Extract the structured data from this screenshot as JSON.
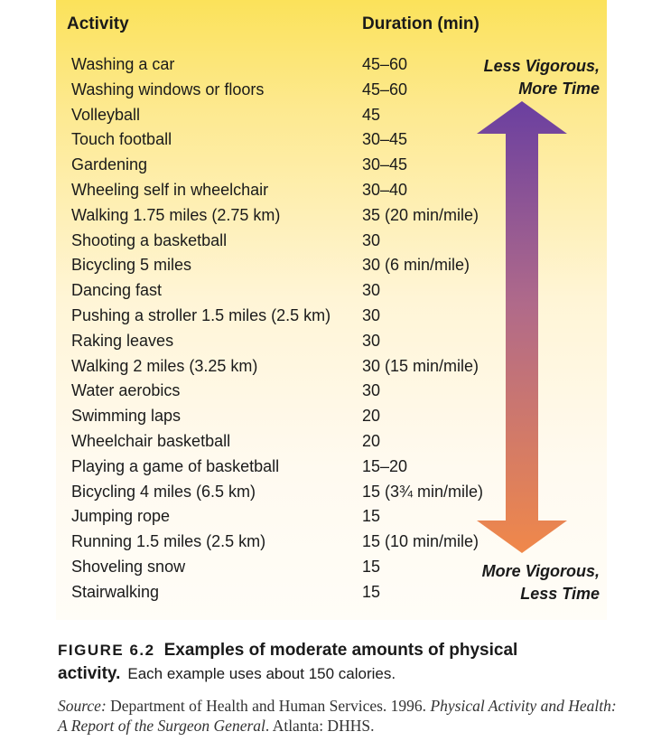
{
  "table": {
    "header_activity": "Activity",
    "header_duration": "Duration (min)",
    "rows": [
      {
        "activity": "Washing a car",
        "duration": "45–60"
      },
      {
        "activity": "Washing windows or floors",
        "duration": "45–60"
      },
      {
        "activity": "Volleyball",
        "duration": "45"
      },
      {
        "activity": "Touch football",
        "duration": "30–45"
      },
      {
        "activity": "Gardening",
        "duration": "30–45"
      },
      {
        "activity": "Wheeling self in wheelchair",
        "duration": "30–40"
      },
      {
        "activity": "Walking 1.75 miles (2.75 km)",
        "duration": "35 (20 min/mile)"
      },
      {
        "activity": "Shooting a basketball",
        "duration": "30"
      },
      {
        "activity": "Bicycling 5 miles",
        "duration": "30 (6 min/mile)"
      },
      {
        "activity": "Dancing fast",
        "duration": "30"
      },
      {
        "activity": "Pushing a stroller 1.5 miles (2.5 km)",
        "duration": "30"
      },
      {
        "activity": "Raking leaves",
        "duration": "30"
      },
      {
        "activity": "Walking 2 miles (3.25 km)",
        "duration": "30 (15 min/mile)"
      },
      {
        "activity": "Water aerobics",
        "duration": "30"
      },
      {
        "activity": "Swimming laps",
        "duration": "20"
      },
      {
        "activity": "Wheelchair basketball",
        "duration": "20"
      },
      {
        "activity": "Playing a game of basketball",
        "duration": "15–20"
      },
      {
        "activity": "Bicycling 4 miles (6.5 km)",
        "duration": "15 (3¾ min/mile)"
      },
      {
        "activity": "Jumping rope",
        "duration": "15"
      },
      {
        "activity": "Running 1.5 miles (2.5 km)",
        "duration": "15 (10 min/mile)"
      },
      {
        "activity": "Shoveling snow",
        "duration": "15"
      },
      {
        "activity": "Stairwalking",
        "duration": "15"
      }
    ]
  },
  "scale": {
    "top_line1": "Less Vigorous,",
    "top_line2": "More Time",
    "bottom_line1": "More Vigorous,",
    "bottom_line2": "Less Time",
    "color_top": "#6a3fa0",
    "color_bottom": "#f0884a"
  },
  "caption": {
    "figure_number": "FIGURE 6.2",
    "title": "Examples of moderate amounts of physical activity.",
    "description": "Each example uses about 150 calories."
  },
  "source": {
    "label": "Source:",
    "text1": "Department of Health and Human Services. 1996.",
    "work_title": "Physical Activity and Health: A Report of the Surgeon General",
    "text2": ". Atlanta: DHHS."
  }
}
